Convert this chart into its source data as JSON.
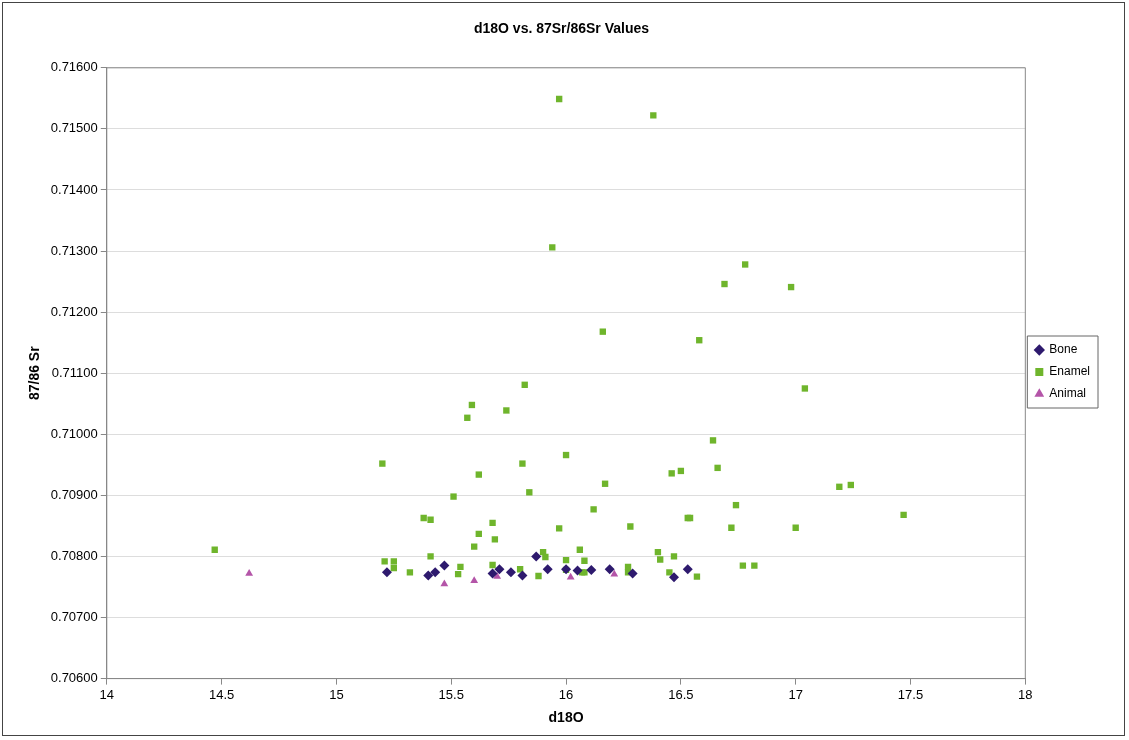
{
  "chart_data": {
    "type": "scatter",
    "title": "d18O vs. 87Sr/86Sr Values",
    "xlabel": "d18O",
    "ylabel": "87/86 Sr",
    "xlim": [
      14,
      18
    ],
    "xticks": [
      14,
      14.5,
      15,
      15.5,
      16,
      16.5,
      17,
      17.5,
      18
    ],
    "ylim": [
      0.706,
      0.716
    ],
    "yticks": [
      {
        "value": 0.706,
        "label": "0.70600"
      },
      {
        "value": 0.707,
        "label": "0.70700"
      },
      {
        "value": 0.708,
        "label": "0.70800"
      },
      {
        "value": 0.709,
        "label": "0.70900"
      },
      {
        "value": 0.71,
        "label": "0.71000"
      },
      {
        "value": 0.711,
        "label": "0.71100"
      },
      {
        "value": 0.712,
        "label": "0.71200"
      },
      {
        "value": 0.713,
        "label": "0.71300"
      },
      {
        "value": 0.714,
        "label": "0.71400"
      },
      {
        "value": 0.715,
        "label": "0.71500"
      },
      {
        "value": 0.716,
        "label": "0.71600"
      }
    ],
    "grid": "y",
    "legend": "right",
    "series": [
      {
        "name": "Bone",
        "color": "#2e1a6e",
        "marker": "diamond",
        "x": [
          15.22,
          15.4,
          15.43,
          15.47,
          15.68,
          15.71,
          15.76,
          15.81,
          15.87,
          15.92,
          16.0,
          16.05,
          16.11,
          16.19,
          16.29,
          16.47,
          16.53
        ],
        "values": [
          0.70774,
          0.70769,
          0.70774,
          0.70785,
          0.70772,
          0.70779,
          0.70774,
          0.70769,
          0.708,
          0.70779,
          0.70779,
          0.70777,
          0.70778,
          0.70779,
          0.70772,
          0.70766,
          0.70779
        ]
      },
      {
        "name": "Enamel",
        "color": "#6fb52c",
        "marker": "square",
        "x": [
          14.47,
          15.2,
          15.21,
          15.25,
          15.25,
          15.32,
          15.38,
          15.41,
          15.41,
          15.51,
          15.53,
          15.54,
          15.57,
          15.59,
          15.6,
          15.62,
          15.62,
          15.68,
          15.69,
          15.68,
          15.74,
          15.82,
          15.81,
          15.8,
          15.84,
          15.88,
          15.9,
          15.91,
          15.94,
          15.97,
          15.97,
          16.0,
          16.0,
          16.0,
          16.06,
          16.07,
          16.08,
          16.08,
          16.12,
          16.16,
          16.17,
          16.28,
          16.27,
          16.27,
          16.38,
          16.4,
          16.41,
          16.45,
          16.47,
          16.46,
          16.5,
          16.53,
          16.54,
          16.57,
          16.58,
          16.64,
          16.66,
          16.69,
          16.72,
          16.74,
          16.77,
          16.78,
          16.82,
          16.98,
          17.0,
          17.04,
          17.19,
          17.24,
          17.47
        ],
        "values": [
          0.70811,
          0.70952,
          0.70792,
          0.70792,
          0.70781,
          0.70774,
          0.70863,
          0.7086,
          0.708,
          0.70898,
          0.70771,
          0.70783,
          0.71027,
          0.71048,
          0.70816,
          0.70837,
          0.70934,
          0.70855,
          0.70828,
          0.70786,
          0.71039,
          0.71081,
          0.70952,
          0.70779,
          0.70905,
          0.70768,
          0.70807,
          0.70799,
          0.71306,
          0.71549,
          0.70846,
          0.70966,
          0.70794,
          0.70778,
          0.70811,
          0.70774,
          0.70793,
          0.70774,
          0.70877,
          0.71168,
          0.70919,
          0.70849,
          0.70783,
          0.70774,
          0.71522,
          0.70807,
          0.70795,
          0.70774,
          0.708,
          0.70936,
          0.7094,
          0.70863,
          0.70863,
          0.70767,
          0.71154,
          0.7099,
          0.70945,
          0.71246,
          0.70847,
          0.70884,
          0.70785,
          0.71278,
          0.70785,
          0.71241,
          0.70847,
          0.71075,
          0.70914,
          0.70917,
          0.70868
        ]
      },
      {
        "name": "Animal",
        "color": "#b455a8",
        "marker": "triangle",
        "x": [
          14.62,
          15.47,
          15.6,
          15.7,
          16.02,
          16.21
        ],
        "values": [
          0.70772,
          0.70755,
          0.7076,
          0.70767,
          0.70766,
          0.70771
        ]
      }
    ]
  }
}
